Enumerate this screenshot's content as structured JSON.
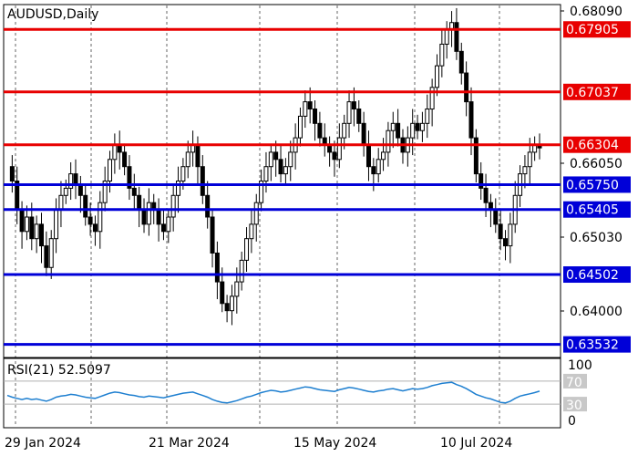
{
  "chart_data": {
    "type": "candlestick",
    "title": "AUDUSD,Daily",
    "y_ticks": [
      "0.68090",
      "0.66050",
      "0.65030",
      "0.64000"
    ],
    "ylim": [
      0.6335,
      0.6825
    ],
    "x_labels": [
      "29 Jan 2024",
      "21 Mar 2024",
      "15 May 2024",
      "10 Jul 2024"
    ],
    "levels": [
      {
        "label": "0.67905",
        "value": 0.67905,
        "color": "#e80000"
      },
      {
        "label": "0.67037",
        "value": 0.67037,
        "color": "#e80000"
      },
      {
        "label": "0.66304",
        "value": 0.66304,
        "color": "#e80000"
      },
      {
        "label": "0.65750",
        "value": 0.6575,
        "color": "#0000d8"
      },
      {
        "label": "0.65405",
        "value": 0.65405,
        "color": "#0000d8"
      },
      {
        "label": "0.64502",
        "value": 0.64502,
        "color": "#0000d8"
      },
      {
        "label": "0.63532",
        "value": 0.63532,
        "color": "#0000d8"
      }
    ],
    "price_path": [
      0.66,
      0.658,
      0.654,
      0.651,
      0.653,
      0.65,
      0.652,
      0.649,
      0.646,
      0.65,
      0.654,
      0.656,
      0.657,
      0.659,
      0.6575,
      0.656,
      0.653,
      0.652,
      0.651,
      0.655,
      0.658,
      0.661,
      0.663,
      0.662,
      0.66,
      0.657,
      0.656,
      0.654,
      0.652,
      0.655,
      0.654,
      0.652,
      0.651,
      0.653,
      0.656,
      0.658,
      0.66,
      0.662,
      0.663,
      0.66,
      0.656,
      0.653,
      0.648,
      0.644,
      0.641,
      0.64,
      0.642,
      0.644,
      0.647,
      0.65,
      0.652,
      0.655,
      0.658,
      0.66,
      0.662,
      0.661,
      0.659,
      0.66,
      0.662,
      0.664,
      0.667,
      0.669,
      0.668,
      0.666,
      0.664,
      0.663,
      0.662,
      0.661,
      0.664,
      0.666,
      0.669,
      0.668,
      0.666,
      0.663,
      0.66,
      0.659,
      0.661,
      0.662,
      0.665,
      0.666,
      0.664,
      0.662,
      0.664,
      0.666,
      0.665,
      0.666,
      0.668,
      0.671,
      0.674,
      0.677,
      0.679,
      0.68,
      0.676,
      0.673,
      0.669,
      0.664,
      0.659,
      0.657,
      0.655,
      0.654,
      0.652,
      0.65,
      0.649,
      0.652,
      0.656,
      0.659,
      0.66,
      0.662,
      0.663,
      0.6626
    ],
    "rsi": {
      "label": "RSI(21) 52.5097",
      "levels": [
        "70",
        "30"
      ],
      "axis_labels": [
        "100",
        "0"
      ],
      "values": [
        45,
        42,
        40,
        38,
        40,
        38,
        39,
        37,
        35,
        38,
        42,
        44,
        45,
        47,
        46,
        44,
        42,
        41,
        40,
        43,
        46,
        49,
        51,
        50,
        48,
        46,
        45,
        43,
        42,
        44,
        43,
        42,
        41,
        43,
        45,
        47,
        49,
        50,
        51,
        48,
        45,
        42,
        38,
        35,
        33,
        32,
        34,
        36,
        39,
        42,
        44,
        47,
        50,
        52,
        54,
        53,
        51,
        52,
        54,
        56,
        58,
        60,
        59,
        57,
        55,
        54,
        53,
        52,
        55,
        57,
        59,
        58,
        56,
        54,
        52,
        51,
        53,
        54,
        56,
        57,
        55,
        53,
        55,
        57,
        56,
        57,
        59,
        62,
        64,
        66,
        67,
        68,
        64,
        61,
        57,
        52,
        47,
        44,
        41,
        39,
        36,
        33,
        32,
        35,
        40,
        44,
        46,
        48,
        50,
        52.5
      ]
    }
  }
}
